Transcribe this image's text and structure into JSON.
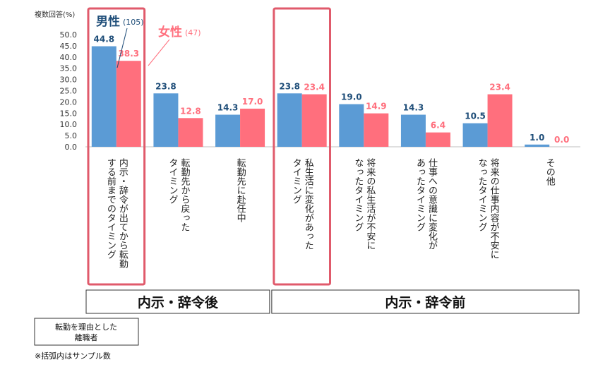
{
  "chart_data": {
    "type": "bar",
    "yaxis_title": "複数回答(%)",
    "ylim": [
      0,
      50
    ],
    "yticks": [
      "0.0",
      "5.0",
      "10.0",
      "15.0",
      "20.0",
      "25.0",
      "30.0",
      "35.0",
      "40.0",
      "45.0",
      "50.0"
    ],
    "categories": [
      [
        "内示・辞令が出てから転勤",
        "する前までのタイミング"
      ],
      [
        "転勤先から戻った",
        "タイミング"
      ],
      [
        "転勤先に赴任中"
      ],
      [
        "私生活に変化があった",
        "タイミング"
      ],
      [
        "将来の私生活が不安に",
        "なったタイミング"
      ],
      [
        "仕事への意識に変化が",
        "あったタイミング"
      ],
      [
        "将来の仕事内容が不安に",
        "なったタイミング"
      ],
      [
        "その他"
      ]
    ],
    "series": [
      {
        "name": "男性",
        "sample": "(105)",
        "color": "#5b9bd5",
        "label_color": "#1f4e79",
        "values": [
          44.8,
          23.8,
          14.3,
          23.8,
          19.0,
          14.3,
          10.5,
          1.0
        ],
        "labels": [
          "44.8",
          "23.8",
          "14.3",
          "23.8",
          "19.0",
          "14.3",
          "10.5",
          "1.0"
        ]
      },
      {
        "name": "女性",
        "sample": "(47)",
        "color": "#ff6f7d",
        "label_color": "#ff6f7d",
        "values": [
          38.3,
          12.8,
          17.0,
          23.4,
          14.9,
          6.4,
          23.4,
          0.0
        ],
        "labels": [
          "38.3",
          "12.8",
          "17.0",
          "23.4",
          "14.9",
          "6.4",
          "23.4",
          "0.0"
        ]
      }
    ],
    "highlight_color": "#e05a6b",
    "highlighted_categories": [
      0,
      3
    ],
    "groups": [
      {
        "label": "内示・辞令後",
        "categories": [
          0,
          1,
          2
        ]
      },
      {
        "label": "内示・辞令前",
        "categories": [
          3,
          4,
          5,
          6,
          7
        ]
      }
    ]
  },
  "respondents_label": [
    "転勤を理由とした",
    "離職者"
  ],
  "footnote": "※括弧内はサンプル数"
}
